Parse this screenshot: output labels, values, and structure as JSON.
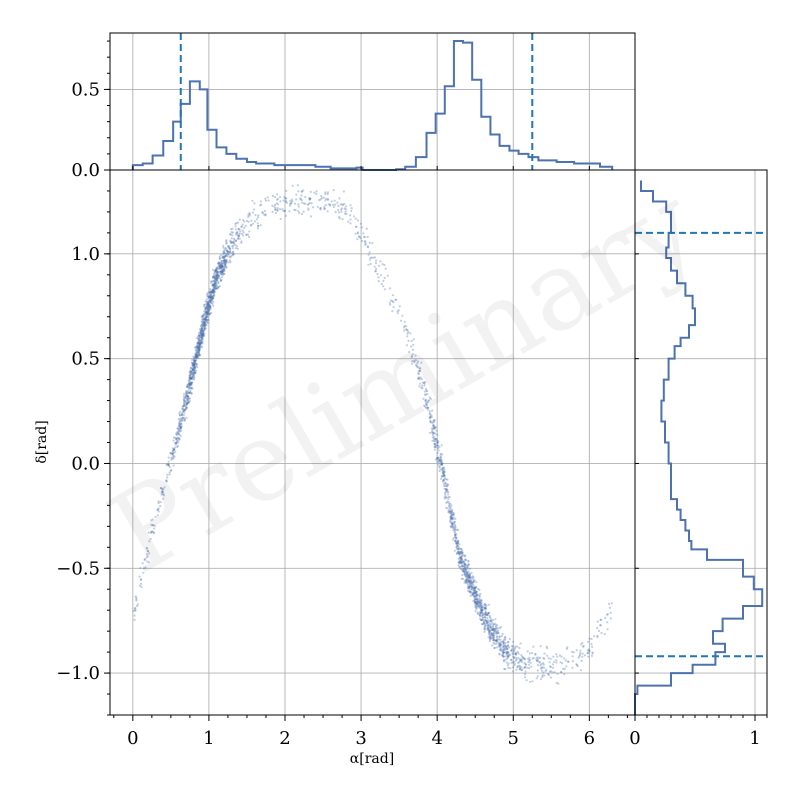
{
  "watermark": "Preliminary",
  "chart_data": [
    {
      "type": "scatter",
      "panel": "joint",
      "xlabel": "α[rad]",
      "ylabel": "δ[rad]",
      "xlim": [
        -0.3,
        6.6
      ],
      "ylim": [
        -1.2,
        1.4
      ],
      "xticks": [
        0,
        1,
        2,
        3,
        4,
        5,
        6
      ],
      "yticks": [
        -1.0,
        -0.5,
        0.0,
        0.5,
        1.0
      ],
      "ytick_labels": [
        "−1.0",
        "−0.5",
        "0.0",
        "0.5",
        "1.0"
      ],
      "grid": true,
      "marker_color": "#4c72b0",
      "curve_samples": {
        "x": [
          0.0,
          0.3,
          0.6,
          0.8,
          0.95,
          1.1,
          1.3,
          1.6,
          2.0,
          2.4,
          2.8,
          3.2,
          3.5,
          3.8,
          4.05,
          4.3,
          4.6,
          4.9,
          5.2,
          5.6,
          6.0,
          6.3
        ],
        "y": [
          -0.75,
          -0.25,
          0.15,
          0.45,
          0.7,
          0.88,
          1.05,
          1.18,
          1.25,
          1.27,
          1.22,
          0.95,
          0.72,
          0.4,
          0.0,
          -0.45,
          -0.72,
          -0.9,
          -0.95,
          -0.97,
          -0.88,
          -0.68
        ]
      }
    },
    {
      "type": "histogram",
      "panel": "top-marginal",
      "orientation": "vertical",
      "ylim": [
        0,
        0.85
      ],
      "yticks": [
        0.0,
        0.5
      ],
      "ytick_labels": [
        "0.0",
        "0.5"
      ],
      "bin_edges": [
        0.0,
        0.13,
        0.26,
        0.4,
        0.53,
        0.63,
        0.75,
        0.88,
        0.98,
        1.1,
        1.23,
        1.36,
        1.5,
        1.62,
        1.86,
        2.4,
        2.6,
        2.94,
        3.02,
        3.46,
        3.58,
        3.72,
        3.86,
        3.98,
        4.1,
        4.22,
        4.34,
        4.46,
        4.58,
        4.7,
        4.82,
        4.95,
        5.07,
        5.2,
        5.33,
        5.57,
        5.8,
        6.14,
        6.3
      ],
      "values": [
        0.03,
        0.04,
        0.09,
        0.18,
        0.3,
        0.41,
        0.55,
        0.5,
        0.25,
        0.14,
        0.1,
        0.07,
        0.05,
        0.04,
        0.03,
        0.02,
        0.01,
        0.015,
        0.0,
        0.005,
        0.02,
        0.08,
        0.23,
        0.35,
        0.52,
        0.8,
        0.79,
        0.56,
        0.33,
        0.22,
        0.15,
        0.12,
        0.1,
        0.08,
        0.06,
        0.05,
        0.04,
        0.02
      ],
      "markers": [
        0.63,
        5.25
      ],
      "color": "#4c72b0",
      "marker_color": "#1f77b4"
    },
    {
      "type": "histogram",
      "panel": "right-marginal",
      "orientation": "horizontal",
      "xlim": [
        0,
        1.1
      ],
      "xticks": [
        0,
        1
      ],
      "xtick_labels": [
        "0",
        "1"
      ],
      "bin_edges": [
        -1.2,
        -1.1,
        -1.06,
        -1.0,
        -0.96,
        -0.9,
        -0.86,
        -0.8,
        -0.74,
        -0.68,
        -0.6,
        -0.54,
        -0.46,
        -0.41,
        -0.37,
        -0.32,
        -0.27,
        -0.22,
        -0.17,
        0.0,
        0.1,
        0.2,
        0.3,
        0.4,
        0.5,
        0.56,
        0.6,
        0.66,
        0.74,
        0.8,
        0.86,
        0.92,
        0.98,
        1.03,
        1.1,
        1.2,
        1.25,
        1.3,
        1.35
      ],
      "values": [
        0.0,
        0.02,
        0.3,
        0.48,
        0.67,
        0.75,
        0.65,
        0.73,
        0.9,
        1.06,
        0.99,
        0.9,
        0.6,
        0.47,
        0.45,
        0.42,
        0.38,
        0.35,
        0.3,
        0.28,
        0.25,
        0.22,
        0.24,
        0.28,
        0.33,
        0.38,
        0.45,
        0.5,
        0.48,
        0.42,
        0.35,
        0.3,
        0.26,
        0.28,
        0.3,
        0.26,
        0.15,
        0.05
      ],
      "markers": [
        -0.92,
        1.1
      ],
      "color": "#4c72b0",
      "marker_color": "#1f77b4"
    }
  ]
}
